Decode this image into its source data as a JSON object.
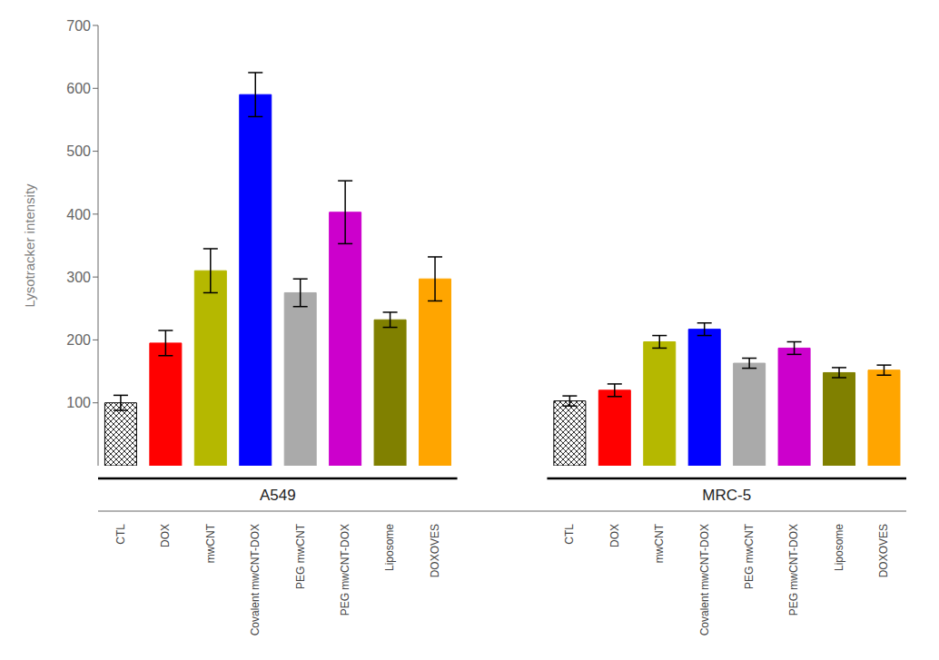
{
  "chart_data": {
    "type": "bar",
    "ylabel": "Lysotracker intensity",
    "categories": [
      "CTL",
      "DOX",
      "mwCNT",
      "Covalent mwCNT-DOX",
      "PEG mwCNT",
      "PEG mwCNT-DOX",
      "Liposome",
      "DOXOVES"
    ],
    "groups": [
      {
        "name": "A549",
        "values": [
          100,
          195,
          310,
          590,
          275,
          403,
          232,
          297
        ],
        "errors": [
          12,
          20,
          35,
          35,
          22,
          50,
          12,
          35
        ]
      },
      {
        "name": "MRC-5",
        "values": [
          103,
          120,
          197,
          217,
          163,
          187,
          148,
          152
        ],
        "errors": [
          8,
          10,
          10,
          10,
          8,
          10,
          8,
          8
        ]
      }
    ],
    "colors": [
      "white",
      "#ff0000",
      "#b5b800",
      "#0000ff",
      "#aaaaaa",
      "#cc00cc",
      "#808000",
      "#ffa500"
    ],
    "ylim": [
      0,
      700
    ],
    "yticks": [
      100,
      200,
      300,
      400,
      500,
      600,
      700
    ]
  }
}
